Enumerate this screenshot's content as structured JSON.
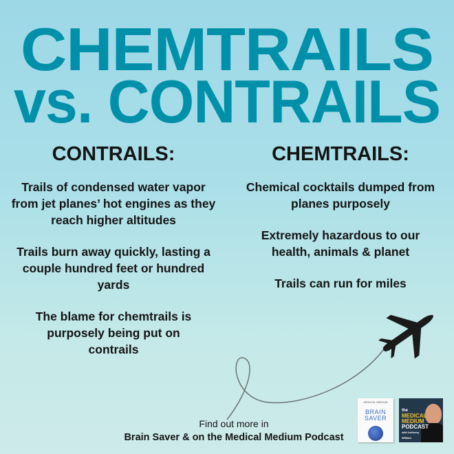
{
  "title": {
    "line1": "CHEMTRAILS",
    "line2": "vs. CONTRAILS"
  },
  "contrails": {
    "heading": "CONTRAILS:",
    "items": [
      "Trails of condensed water vapor from jet planes’ hot engines as they reach higher altitudes",
      "Trails burn away quickly, lasting a couple hundred feet or hundred yards",
      "The blame for chemtrails is purposely being put on contrails"
    ]
  },
  "chemtrails": {
    "heading": "CHEMTRAILS:",
    "items": [
      "Chemical cocktails dumped from planes purposely",
      "Extremely hazardous to our health, animals & planet",
      "Trails can run for miles"
    ]
  },
  "footer": {
    "line1": "Find out more in",
    "line2": "Brain Saver & on the Medical Medium Podcast"
  },
  "book": {
    "brand": "MEDICAL MEDIUM",
    "title1": "BRAIN",
    "title2": "SAVER"
  },
  "podcast": {
    "the": "the",
    "line1": "MEDICAL",
    "line2": "MEDIUM",
    "line3": "PODCAST",
    "with": "with Anthony William"
  },
  "colors": {
    "title": "#0090aa",
    "text": "#141414",
    "plane": "#1a1a1a"
  },
  "icons": [
    "airplane-icon",
    "flight-path-loop"
  ]
}
